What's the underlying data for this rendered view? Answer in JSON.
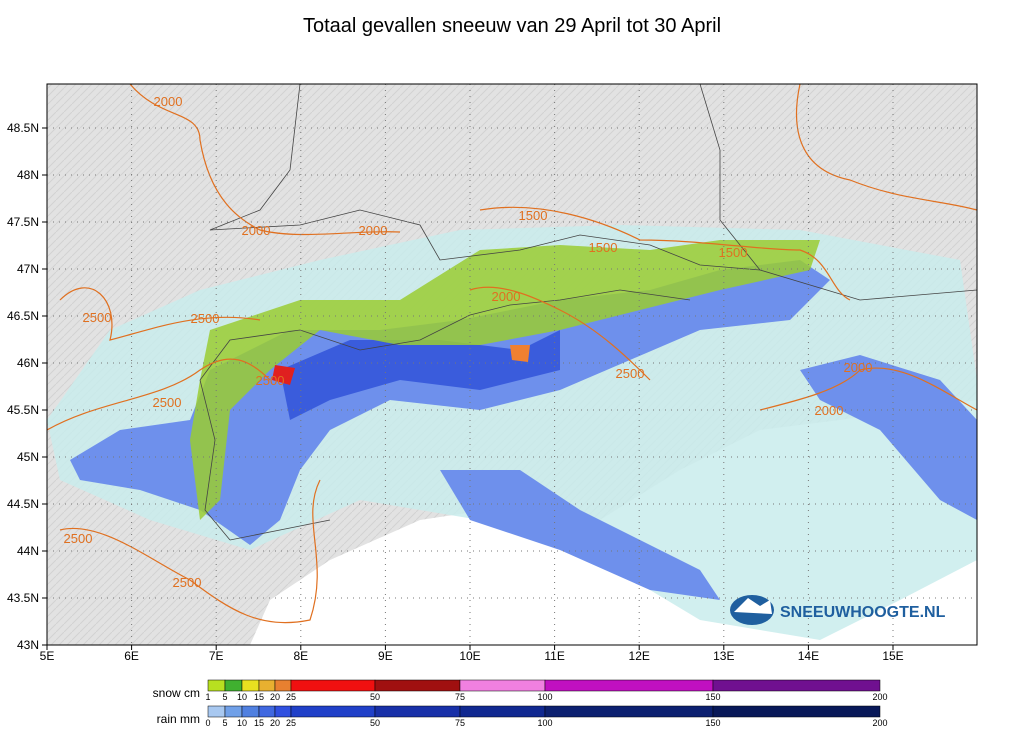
{
  "title": "Totaal gevallen sneeuw van 29 April tot 30 April",
  "map": {
    "longitude_labels": [
      "5E",
      "6E",
      "7E",
      "8E",
      "9E",
      "10E",
      "11E",
      "12E",
      "13E",
      "14E",
      "15E"
    ],
    "latitude_labels": [
      "43N",
      "43.5N",
      "44N",
      "44.5N",
      "45N",
      "45.5N",
      "46N",
      "46.5N",
      "47N",
      "47.5N",
      "48N",
      "48.5N"
    ],
    "contour_labels": [
      "2000",
      "2000",
      "2000",
      "1500",
      "1500",
      "1500",
      "2000",
      "2500",
      "2500",
      "2500",
      "2500",
      "2500",
      "2000",
      "2000",
      "2500",
      "2500"
    ],
    "logo": "SNEEUWHOOGTE.NL"
  },
  "legend": {
    "snow": {
      "label": "snow cm",
      "ticks": [
        1,
        5,
        10,
        15,
        20,
        25,
        50,
        75,
        100,
        150,
        200
      ]
    },
    "rain": {
      "label": "rain mm",
      "ticks": [
        0,
        5,
        10,
        15,
        20,
        25,
        50,
        75,
        100,
        150,
        200
      ]
    }
  }
}
